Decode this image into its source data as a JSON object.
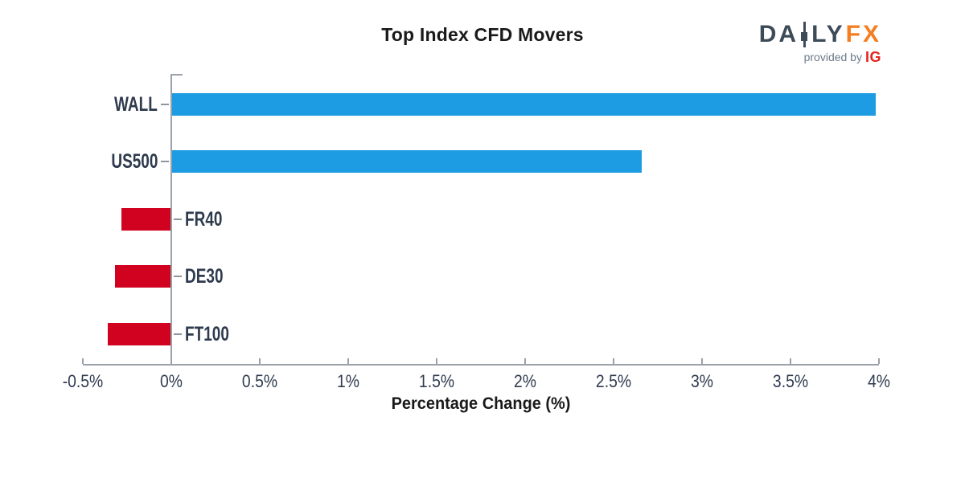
{
  "logo": {
    "word_part1": "DA",
    "word_part2": "LY",
    "word_part3": "FX",
    "tagline": "provided by",
    "brand": "IG",
    "slate_color": "#3d4a57",
    "orange_color": "#f47e20",
    "ig_red_color": "#e3261d",
    "tagline_gray_color": "#6e7b8a"
  },
  "chart_data": {
    "type": "bar",
    "orientation": "horizontal",
    "title": "Top Index CFD Movers",
    "xlabel": "Percentage Change (%)",
    "categories": [
      "WALL",
      "US500",
      "FR40",
      "DE30",
      "FT100"
    ],
    "values": [
      3.98,
      2.66,
      -0.28,
      -0.32,
      -0.36
    ],
    "xlim": [
      -0.5,
      4.0
    ],
    "xticks": [
      -0.5,
      0,
      0.5,
      1,
      1.5,
      2,
      2.5,
      3,
      3.5,
      4
    ],
    "xtick_labels": [
      "-0.5%",
      "0%",
      "0.5%",
      "1%",
      "1.5%",
      "2%",
      "2.5%",
      "3%",
      "3.5%",
      "4%"
    ],
    "positive_color": "#1e9ce3",
    "negative_color": "#d0021f",
    "axis_color": "#9aa1a9",
    "tick_label_color": "#303c50",
    "category_label_color": "#2e3a4d",
    "grid": false,
    "legend": null
  }
}
